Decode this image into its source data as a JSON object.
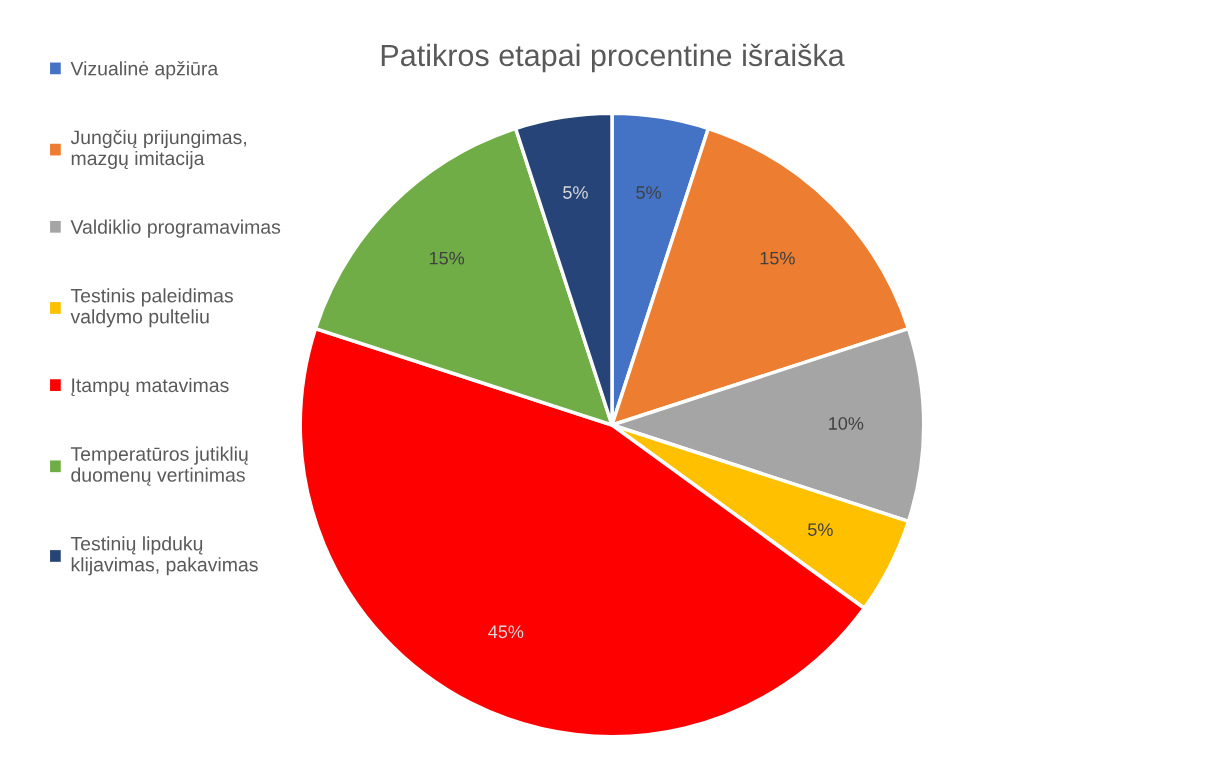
{
  "chart_data": {
    "type": "pie",
    "title": "Patikros etapai procentine išraiška",
    "categories": [
      "Vizualinė apžiūra",
      "Jungčių prijungimas,\nmazgų imitacija",
      "Valdiklio programavimas",
      "Testinis paleidimas\nvaldymo pulteliu",
      "Įtampų matavimas",
      "Temperatūros jutiklių\nduomenų vertinimas",
      "Testinių lipdukų\nklijavimas, pakavimas"
    ],
    "values": [
      5,
      15,
      10,
      5,
      45,
      15,
      5
    ],
    "value_labels": [
      "5%",
      "15%",
      "10%",
      "5%",
      "45%",
      "15%",
      "5%"
    ],
    "colors": [
      "#4472c4",
      "#ed7d31",
      "#a5a5a5",
      "#ffc000",
      "#ff0000",
      "#70ad47",
      "#264478"
    ],
    "legend": "left"
  }
}
